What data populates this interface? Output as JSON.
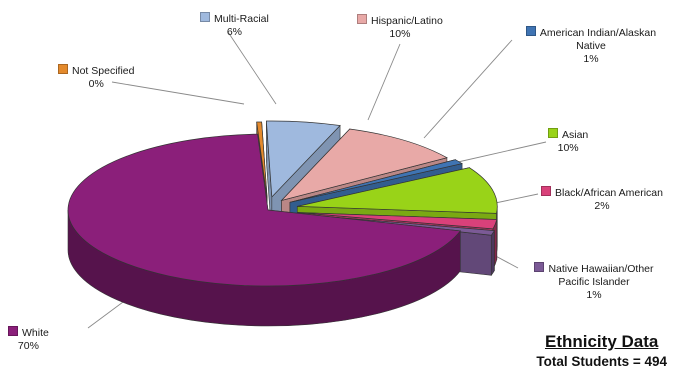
{
  "chart_data": {
    "type": "pie",
    "title": "Ethnicity Data",
    "subtitle": "Total Students = 494",
    "slices": [
      {
        "label": "Not Specified",
        "value": 0,
        "value_label": "0%",
        "color": "#e48a2c"
      },
      {
        "label": "Multi-Racial",
        "value": 6,
        "value_label": "6%",
        "color": "#9fb9de"
      },
      {
        "label": "Hispanic/Latino",
        "value": 10,
        "value_label": "10%",
        "color": "#e8a9a7"
      },
      {
        "label": "American Indian/Alaskan Native",
        "value": 1,
        "value_label": "1%",
        "color": "#3f74b3"
      },
      {
        "label": "Asian",
        "value": 10,
        "value_label": "10%",
        "color": "#99d318"
      },
      {
        "label": "Black/African American",
        "value": 2,
        "value_label": "2%",
        "color": "#d9417a"
      },
      {
        "label": "Native Hawaiian/Other Pacific Islander",
        "value": 1,
        "value_label": "1%",
        "color": "#7b5a96"
      },
      {
        "label": "White",
        "value": 70,
        "value_label": "70%",
        "color": "#8b1f7a"
      }
    ]
  }
}
